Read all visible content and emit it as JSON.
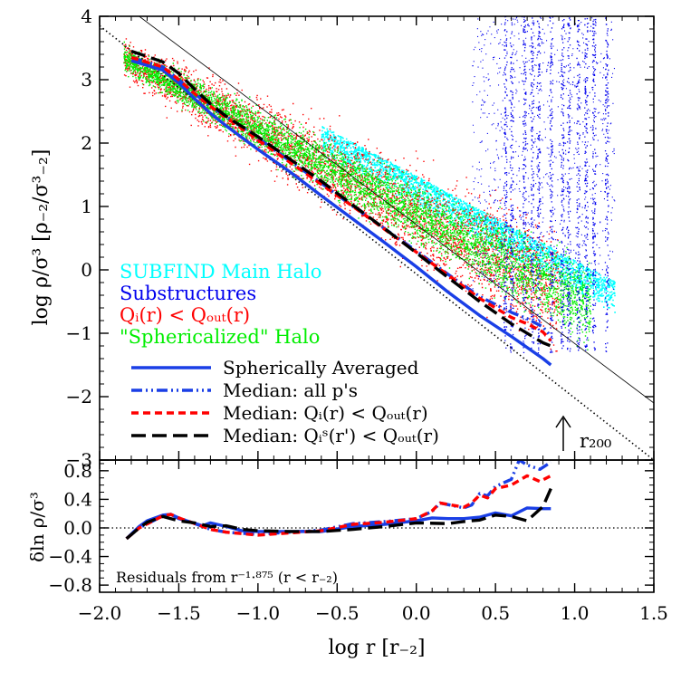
{
  "chart_data": [
    {
      "panel": "main",
      "type": "scatter",
      "xlabel": "log r [r₋₂]",
      "ylabel": "log ρ/σ³ [ρ₋₂/σ³₋₂]",
      "xlim": [
        -2.0,
        1.5
      ],
      "ylim": [
        -3.0,
        4.0
      ],
      "xticks": [
        -2.0,
        -1.5,
        -1.0,
        -0.5,
        0.0,
        0.5,
        1.0,
        1.5
      ],
      "xtick_labels": [
        "−2.0",
        "−1.5",
        "−1.0",
        "−0.5",
        "0.0",
        "0.5",
        "1.0",
        "1.5"
      ],
      "yticks": [
        -3,
        -2,
        -1,
        0,
        1,
        2,
        3,
        4
      ],
      "ytick_labels": [
        "−3",
        "−2",
        "−1",
        "0",
        "1",
        "2",
        "3",
        "4"
      ],
      "text_legend": [
        {
          "label": "SUBFIND Main Halo",
          "color": "#00ffff"
        },
        {
          "label": "Substructures",
          "color": "#0000ee"
        },
        {
          "label": "Qᵢ(r) < Qₒᵤₜ(r)",
          "color": "#ff0000"
        },
        {
          "label": "\"Sphericalized\" Halo",
          "color": "#00ee00"
        }
      ],
      "line_legend": [
        {
          "label": "Spherically Averaged",
          "color": "#1a3fe6",
          "style": "solid"
        },
        {
          "label": "Median: all p's",
          "color": "#1a3fe6",
          "style": "dashdot"
        },
        {
          "label": "Median: Qᵢ(r) < Qₒᵤₜ(r)",
          "color": "#ff0000",
          "style": "dashed"
        },
        {
          "label": "Median: Qᵢˢ(r') < Qₒᵤₜ(r)",
          "color": "#000000",
          "style": "longdash"
        }
      ],
      "r200_label": "r₂₀₀",
      "r200_x": 0.82,
      "reference_lines": [
        {
          "name": "power-law-slope",
          "style": "thin-solid",
          "x": [
            -1.75,
            1.5
          ],
          "y": [
            4.0,
            -2.1
          ]
        },
        {
          "name": "inner-power-law",
          "style": "dotted",
          "x": [
            -2.0,
            1.5
          ],
          "y": [
            3.85,
            -3.0
          ]
        }
      ],
      "series": [
        {
          "name": "Spherically Averaged",
          "x": [
            -1.8,
            -1.6,
            -1.5,
            -1.4,
            -1.3,
            -1.2,
            -1.0,
            -0.8,
            -0.6,
            -0.4,
            -0.2,
            0.0,
            0.2,
            0.4,
            0.6,
            0.8,
            0.85
          ],
          "y": [
            3.3,
            3.15,
            2.95,
            2.7,
            2.47,
            2.27,
            1.9,
            1.55,
            1.17,
            0.8,
            0.43,
            0.05,
            -0.35,
            -0.72,
            -1.05,
            -1.4,
            -1.5
          ]
        },
        {
          "name": "Median: all p's",
          "x": [
            -1.8,
            -1.6,
            -1.5,
            -1.4,
            -1.3,
            -1.2,
            -1.0,
            -0.8,
            -0.6,
            -0.4,
            -0.2,
            0.0,
            0.2,
            0.4,
            0.6,
            0.7,
            0.8,
            0.85
          ],
          "y": [
            3.35,
            3.2,
            3.0,
            2.78,
            2.58,
            2.42,
            2.08,
            1.72,
            1.37,
            1.0,
            0.65,
            0.3,
            -0.07,
            -0.42,
            -0.67,
            -0.77,
            -0.9,
            -1.05
          ]
        },
        {
          "name": "Median: Qᵢ(r) < Qₒᵤₜ(r)",
          "x": [
            -1.8,
            -1.6,
            -1.5,
            -1.4,
            -1.3,
            -1.2,
            -1.0,
            -0.8,
            -0.6,
            -0.4,
            -0.2,
            0.0,
            0.2,
            0.4,
            0.6,
            0.7,
            0.8,
            0.85
          ],
          "y": [
            3.35,
            3.2,
            3.0,
            2.78,
            2.58,
            2.4,
            2.05,
            1.7,
            1.35,
            1.0,
            0.64,
            0.28,
            -0.08,
            -0.45,
            -0.75,
            -0.85,
            -0.98,
            -1.12
          ]
        },
        {
          "name": "Median: Qᵢˢ(r') < Qₒᵤₜ(r)",
          "x": [
            -1.8,
            -1.6,
            -1.5,
            -1.4,
            -1.3,
            -1.2,
            -1.0,
            -0.8,
            -0.6,
            -0.4,
            -0.2,
            0.0,
            0.2,
            0.4,
            0.6,
            0.8,
            0.85
          ],
          "y": [
            3.45,
            3.28,
            3.1,
            2.85,
            2.62,
            2.42,
            2.1,
            1.75,
            1.4,
            1.02,
            0.65,
            0.27,
            -0.12,
            -0.5,
            -0.85,
            -1.15,
            -1.2
          ]
        }
      ]
    },
    {
      "panel": "residuals",
      "type": "line",
      "xlabel": "log r [r₋₂]",
      "ylabel": "δln ρ/σ³",
      "xlim": [
        -2.0,
        1.5
      ],
      "ylim": [
        -0.9,
        0.95
      ],
      "yticks": [
        -0.8,
        -0.4,
        0.0,
        0.4,
        0.8
      ],
      "ytick_labels": [
        "−0.8",
        "−0.4",
        "0.0",
        "0.4",
        "0.8"
      ],
      "annotation": "Residuals from r⁻¹·⁸⁷⁵ (r < r₋₂)",
      "zero_line": true,
      "series": [
        {
          "name": "Spherically Averaged",
          "x": [
            -1.83,
            -1.75,
            -1.7,
            -1.6,
            -1.55,
            -1.5,
            -1.45,
            -1.35,
            -1.3,
            -1.2,
            -1.1,
            -1.0,
            -0.8,
            -0.6,
            -0.4,
            -0.2,
            0.0,
            0.1,
            0.2,
            0.3,
            0.4,
            0.5,
            0.6,
            0.7,
            0.8,
            0.85
          ],
          "y": [
            -0.15,
            0.02,
            0.1,
            0.18,
            0.19,
            0.13,
            0.1,
            0.03,
            0.07,
            0.02,
            -0.04,
            -0.05,
            -0.05,
            -0.05,
            0.02,
            0.05,
            0.1,
            0.14,
            0.13,
            0.13,
            0.15,
            0.21,
            0.17,
            0.28,
            0.27,
            0.27
          ]
        },
        {
          "name": "Median: all p's",
          "x": [
            -1.83,
            -1.75,
            -1.6,
            -1.55,
            -1.5,
            -1.4,
            -1.3,
            -1.2,
            -1.0,
            -0.8,
            -0.6,
            -0.4,
            -0.2,
            0.0,
            0.1,
            0.15,
            0.3,
            0.35,
            0.4,
            0.45,
            0.5,
            0.6,
            0.65,
            0.7,
            0.78,
            0.85
          ],
          "y": [
            -0.15,
            0.0,
            0.17,
            0.19,
            0.14,
            0.06,
            -0.02,
            -0.06,
            -0.09,
            -0.06,
            -0.03,
            0.06,
            0.09,
            0.13,
            0.23,
            0.35,
            0.28,
            0.32,
            0.48,
            0.45,
            0.58,
            0.68,
            0.95,
            0.88,
            0.82,
            0.92
          ]
        },
        {
          "name": "Median: Qᵢ(r) < Qₒᵤₜ(r)",
          "x": [
            -1.83,
            -1.75,
            -1.6,
            -1.55,
            -1.5,
            -1.4,
            -1.3,
            -1.2,
            -1.0,
            -0.8,
            -0.6,
            -0.4,
            -0.2,
            0.0,
            0.1,
            0.15,
            0.3,
            0.35,
            0.4,
            0.45,
            0.5,
            0.6,
            0.7,
            0.78,
            0.85
          ],
          "y": [
            -0.15,
            0.0,
            0.17,
            0.19,
            0.14,
            0.06,
            -0.02,
            -0.06,
            -0.1,
            -0.07,
            -0.04,
            0.05,
            0.08,
            0.13,
            0.24,
            0.35,
            0.29,
            0.35,
            0.46,
            0.42,
            0.55,
            0.6,
            0.73,
            0.65,
            0.73
          ]
        },
        {
          "name": "Median: Qᵢˢ(r') < Qₒᵤₜ(r)",
          "x": [
            -1.83,
            -1.75,
            -1.7,
            -1.6,
            -1.5,
            -1.4,
            -1.3,
            -1.2,
            -1.1,
            -1.0,
            -0.8,
            -0.6,
            -0.4,
            -0.2,
            0.0,
            0.2,
            0.3,
            0.4,
            0.5,
            0.6,
            0.7,
            0.8,
            0.85
          ],
          "y": [
            -0.15,
            0.0,
            0.08,
            0.16,
            0.1,
            0.07,
            0.02,
            0.03,
            -0.02,
            -0.04,
            -0.05,
            -0.05,
            -0.02,
            0.02,
            0.07,
            0.06,
            0.09,
            0.11,
            0.18,
            0.16,
            0.1,
            0.3,
            0.55
          ]
        }
      ]
    }
  ]
}
